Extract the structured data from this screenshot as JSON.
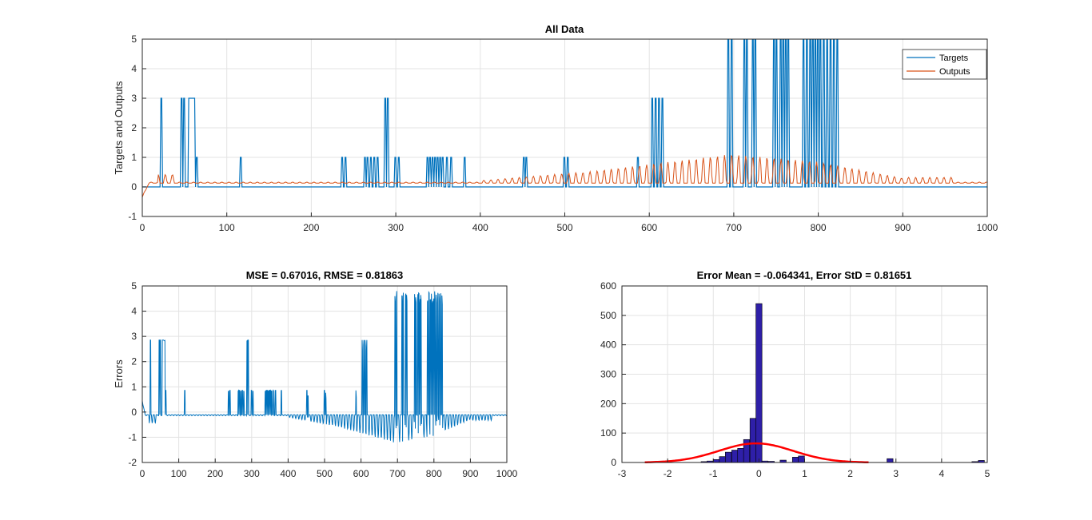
{
  "chart_data": [
    {
      "id": "top",
      "type": "line",
      "title": "All Data",
      "xlabel": "",
      "ylabel": "Targets and Outputs",
      "xlim": [
        0,
        1000
      ],
      "ylim": [
        -1,
        5
      ],
      "xticks": [
        0,
        100,
        200,
        300,
        400,
        500,
        600,
        700,
        800,
        900,
        1000
      ],
      "yticks": [
        -1,
        0,
        1,
        2,
        3,
        4,
        5
      ],
      "grid": true,
      "legend": "top-right",
      "series": [
        {
          "name": "Targets",
          "color": "#0072BD",
          "pulses": [
            [
              22,
              3
            ],
            [
              46,
              3
            ],
            [
              49,
              3
            ],
            [
              55,
              3
            ],
            [
              57,
              3
            ],
            [
              59,
              3
            ],
            [
              61,
              3
            ],
            [
              64,
              1
            ],
            [
              116,
              1
            ],
            [
              236,
              1
            ],
            [
              240,
              1
            ],
            [
              263,
              1
            ],
            [
              266,
              1
            ],
            [
              270,
              1
            ],
            [
              274,
              1
            ],
            [
              278,
              1
            ],
            [
              287,
              3
            ],
            [
              290,
              3
            ],
            [
              299,
              1
            ],
            [
              303,
              1
            ],
            [
              337,
              1
            ],
            [
              340,
              1
            ],
            [
              343,
              1
            ],
            [
              346,
              1
            ],
            [
              349,
              1
            ],
            [
              352,
              1
            ],
            [
              355,
              1
            ],
            [
              360,
              1
            ],
            [
              365,
              1
            ],
            [
              381,
              1
            ],
            [
              451,
              1
            ],
            [
              454,
              1
            ],
            [
              499,
              1
            ],
            [
              503,
              1
            ],
            [
              586,
              1
            ],
            [
              603,
              3
            ],
            [
              607,
              3
            ],
            [
              611,
              3
            ],
            [
              615,
              3
            ],
            [
              693,
              5
            ],
            [
              697,
              5
            ],
            [
              712,
              5
            ],
            [
              715,
              5
            ],
            [
              722,
              5
            ],
            [
              725,
              5
            ],
            [
              747,
              5
            ],
            [
              750,
              5
            ],
            [
              755,
              5
            ],
            [
              758,
              5
            ],
            [
              761,
              5
            ],
            [
              764,
              5
            ],
            [
              782,
              5
            ],
            [
              786,
              5
            ],
            [
              790,
              5
            ],
            [
              793,
              5
            ],
            [
              796,
              5
            ],
            [
              799,
              5
            ],
            [
              802,
              5
            ],
            [
              806,
              5
            ],
            [
              810,
              5
            ],
            [
              814,
              5
            ],
            [
              818,
              5
            ],
            [
              822,
              5
            ]
          ]
        },
        {
          "name": "Outputs",
          "color": "#D95319",
          "description_free_model": "damped oscillation baseline"
        }
      ]
    },
    {
      "id": "errors",
      "type": "line",
      "title": "MSE = 0.67016, RMSE = 0.81863",
      "xlabel": "",
      "ylabel": "Errors",
      "xlim": [
        0,
        1000
      ],
      "ylim": [
        -2,
        5
      ],
      "xticks": [
        0,
        100,
        200,
        300,
        400,
        500,
        600,
        700,
        800,
        900,
        1000
      ],
      "yticks": [
        -2,
        -1,
        0,
        1,
        2,
        3,
        4,
        5
      ],
      "grid": true,
      "series": [
        {
          "name": "Errors",
          "color": "#0072BD"
        }
      ]
    },
    {
      "id": "hist",
      "type": "bar",
      "title": "Error Mean = -0.064341, Error StD = 0.81651",
      "xlabel": "",
      "ylabel": "",
      "xlim": [
        -3,
        5
      ],
      "ylim": [
        0,
        600
      ],
      "xticks": [
        -3,
        -2,
        -1,
        0,
        1,
        2,
        3,
        4,
        5
      ],
      "yticks": [
        0,
        100,
        200,
        300,
        400,
        500,
        600
      ],
      "grid": true,
      "bin_width": 0.133,
      "bins": [
        [
          -1.2,
          3
        ],
        [
          -1.07,
          5
        ],
        [
          -0.93,
          10
        ],
        [
          -0.8,
          20
        ],
        [
          -0.67,
          35
        ],
        [
          -0.53,
          42
        ],
        [
          -0.4,
          48
        ],
        [
          -0.27,
          78
        ],
        [
          -0.13,
          150
        ],
        [
          0.0,
          540
        ],
        [
          0.13,
          5
        ],
        [
          0.27,
          4
        ],
        [
          0.53,
          8
        ],
        [
          0.8,
          18
        ],
        [
          0.93,
          22
        ],
        [
          2.87,
          13
        ],
        [
          4.73,
          3
        ],
        [
          4.87,
          7
        ]
      ],
      "fit": {
        "name": "Normal fit",
        "color": "#FF0000",
        "mean": -0.064341,
        "std": 0.81651,
        "peak": 65,
        "range": [
          -2.5,
          2.4
        ]
      }
    }
  ]
}
